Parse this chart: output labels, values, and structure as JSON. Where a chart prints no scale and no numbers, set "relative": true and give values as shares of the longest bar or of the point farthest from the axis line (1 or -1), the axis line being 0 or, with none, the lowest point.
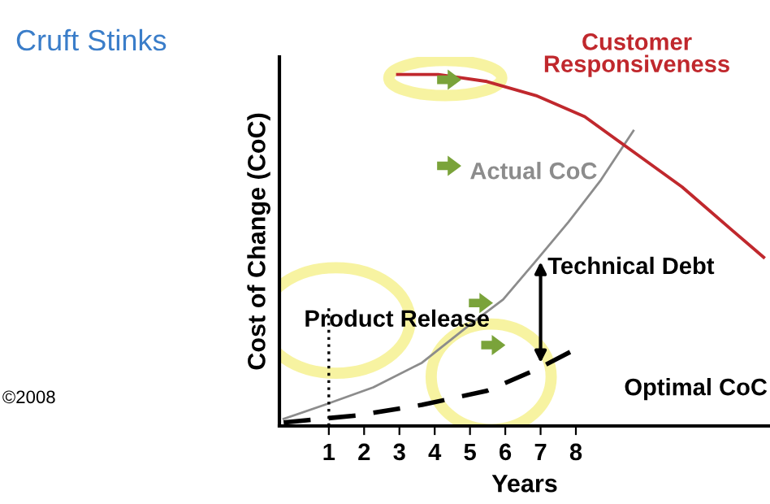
{
  "chart_data": {
    "type": "line",
    "title": "Cruft Stinks",
    "xlabel": "Years",
    "ylabel": "Cost of Change (CoC)",
    "relative": true,
    "xlim": [
      -0.4,
      13.5
    ],
    "xticks": [
      1,
      2,
      3,
      4,
      5,
      6,
      7,
      8
    ],
    "tick_labels": "x",
    "grid": false,
    "legend": false,
    "marker": "none",
    "series": [
      {
        "name": "Actual CoC",
        "color": "#8c8c8c",
        "line_style": "solid",
        "x": [
          -0.28,
          0.88,
          2.26,
          3.64,
          5.02,
          5.94,
          6.87,
          7.79,
          8.71,
          9.63
        ],
        "values": [
          0.02,
          0.06,
          0.11,
          0.18,
          0.29,
          0.36,
          0.47,
          0.58,
          0.7,
          0.84
        ]
      },
      {
        "name": "Optimal CoC",
        "color": "#000000",
        "line_style": "dashed",
        "x": [
          -0.28,
          1.8,
          3.64,
          5.48,
          6.87,
          8.02
        ],
        "values": [
          0.01,
          0.03,
          0.06,
          0.1,
          0.16,
          0.22
        ]
      },
      {
        "name": "Customer Responsiveness",
        "color": "#c0282d",
        "line_style": "solid",
        "x": [
          2.95,
          4.1,
          5.48,
          6.87,
          8.25,
          9.63,
          11.01,
          12.39,
          13.32
        ],
        "values": [
          1.0,
          1.0,
          0.98,
          0.94,
          0.88,
          0.78,
          0.68,
          0.56,
          0.48
        ]
      }
    ],
    "ref_lines": [
      {
        "axis": "x",
        "value": 1,
        "label": "Product Release",
        "color": "#000000",
        "line_style": "dotted"
      }
    ],
    "annotations": [
      {
        "text": "Technical Debt",
        "x": 7,
        "y": 0.48
      },
      "©2008"
    ]
  }
}
